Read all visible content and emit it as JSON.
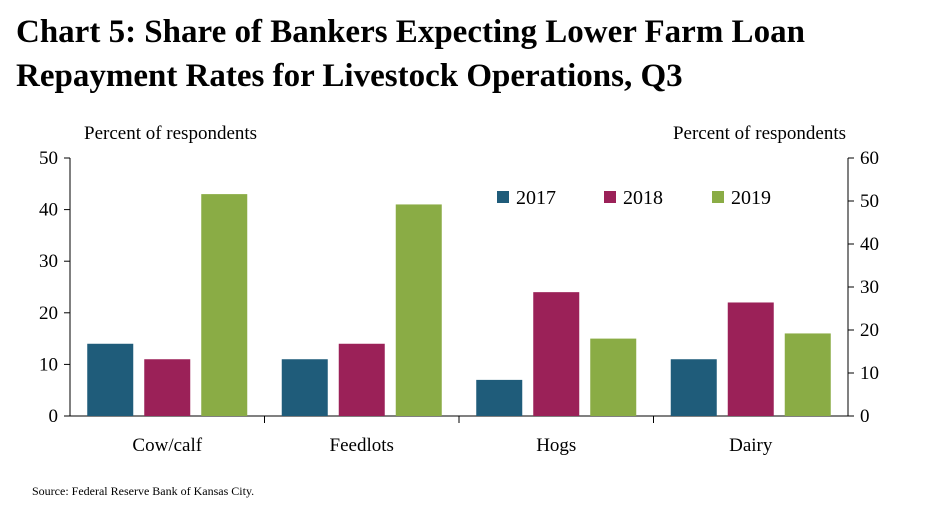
{
  "title_lines": [
    "Chart 5: Share of Bankers Expecting Lower Farm Loan",
    "Repayment Rates for Livestock Operations, Q3"
  ],
  "source": "Source: Federal Reserve Bank of Kansas City.",
  "chart_data": {
    "type": "bar",
    "title": "Chart 5: Share of Bankers Expecting Lower Farm Loan Repayment Rates for Livestock Operations, Q3",
    "categories": [
      "Cow/calf",
      "Feedlots",
      "Hogs",
      "Dairy"
    ],
    "series": [
      {
        "name": "2017",
        "color": "#1f5c7a",
        "values": [
          14,
          11,
          7,
          11
        ]
      },
      {
        "name": "2018",
        "color": "#9b2158",
        "values": [
          11,
          14,
          24,
          22
        ]
      },
      {
        "name": "2019",
        "color": "#8aac45",
        "values": [
          43,
          41,
          15,
          16
        ]
      }
    ],
    "left_axis": {
      "label": "Percent of respondents",
      "ylim": [
        0,
        50
      ],
      "ticks": [
        0,
        10,
        20,
        30,
        40,
        50
      ]
    },
    "right_axis": {
      "label": "Percent of respondents",
      "ylim": [
        0,
        60
      ],
      "ticks": [
        0,
        10,
        20,
        30,
        40,
        50,
        60
      ]
    },
    "grid": false,
    "legend_position": "top-right"
  }
}
